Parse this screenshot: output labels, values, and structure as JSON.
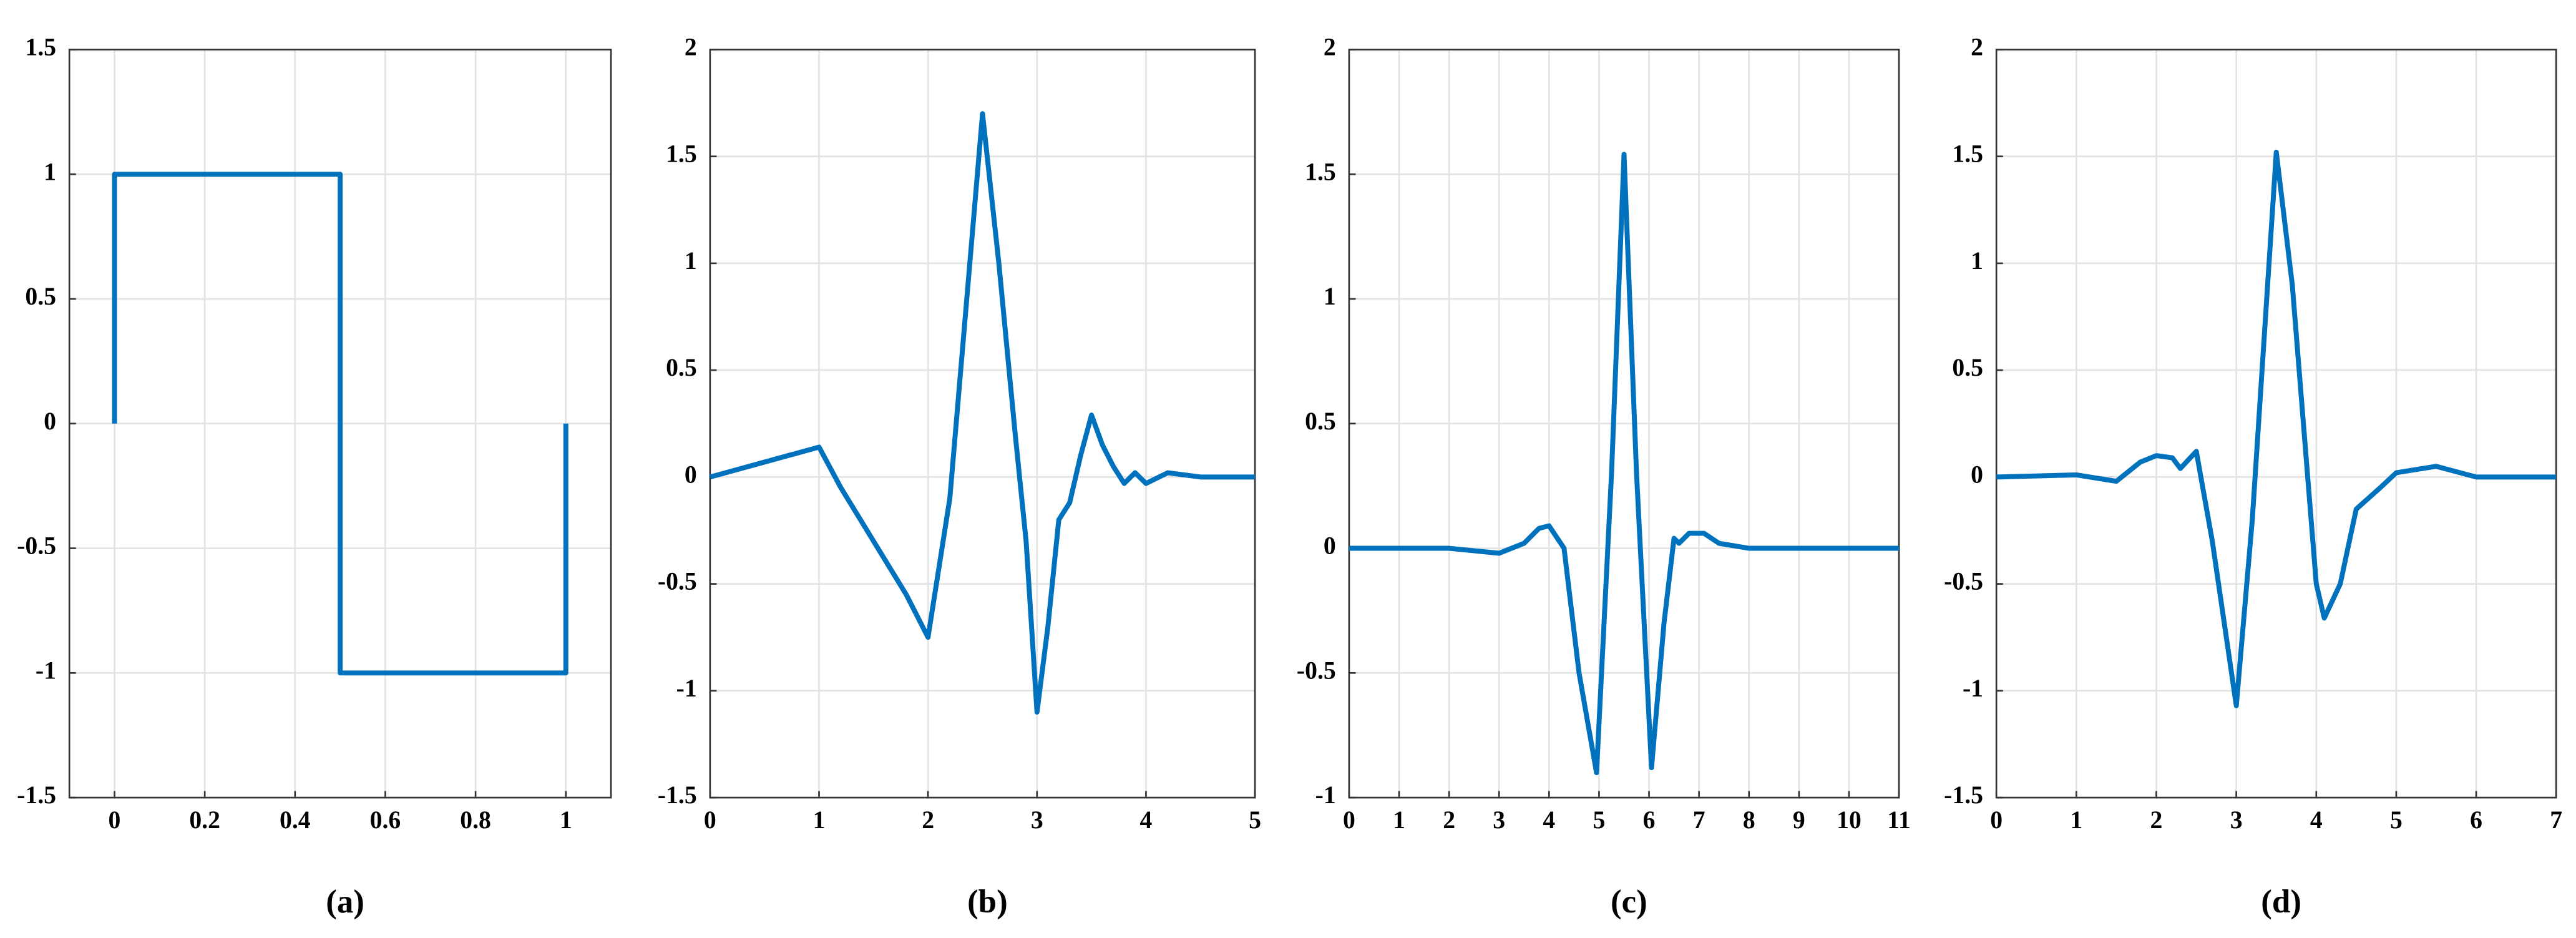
{
  "chart_data": [
    {
      "type": "line",
      "caption": "(a)",
      "color": "#0072bd",
      "grid": true,
      "x": [
        0,
        0,
        0.5,
        0.5,
        1,
        1
      ],
      "values": [
        0,
        1,
        1,
        -1,
        -1,
        0
      ],
      "xlim": [
        -0.1,
        1.1
      ],
      "ylim": [
        -1.5,
        1.5
      ],
      "xticks": [
        0,
        0.2,
        0.4,
        0.6,
        0.8,
        1
      ],
      "yticks": [
        -1.5,
        -1,
        -0.5,
        0,
        0.5,
        1,
        1.5
      ]
    },
    {
      "type": "line",
      "caption": "(b)",
      "color": "#0072bd",
      "grid": true,
      "x": [
        0,
        0.5,
        1,
        1.2,
        1.5,
        1.8,
        2,
        2.2,
        2.35,
        2.5,
        2.65,
        2.8,
        2.9,
        3,
        3.1,
        3.2,
        3.3,
        3.4,
        3.5,
        3.6,
        3.7,
        3.8,
        3.9,
        4,
        4.2,
        4.5,
        5
      ],
      "values": [
        0,
        0.07,
        0.14,
        -0.05,
        -0.3,
        -0.55,
        -0.75,
        -0.1,
        0.8,
        1.7,
        1.0,
        0.2,
        -0.3,
        -1.1,
        -0.7,
        -0.2,
        -0.12,
        0.1,
        0.29,
        0.15,
        0.05,
        -0.03,
        0.02,
        -0.03,
        0.02,
        0,
        0
      ],
      "xlim": [
        0,
        5
      ],
      "ylim": [
        -1.5,
        2
      ],
      "xticks": [
        0,
        1,
        2,
        3,
        4,
        5
      ],
      "yticks": [
        -1.5,
        -1,
        -0.5,
        0,
        0.5,
        1,
        1.5,
        2
      ]
    },
    {
      "type": "line",
      "caption": "(c)",
      "color": "#0072bd",
      "grid": true,
      "x": [
        0,
        2,
        3,
        3.5,
        3.8,
        4,
        4.3,
        4.6,
        4.95,
        5.25,
        5.5,
        5.75,
        6.05,
        6.3,
        6.5,
        6.6,
        6.8,
        7.1,
        7.4,
        8,
        11
      ],
      "values": [
        0,
        0,
        -0.02,
        0.02,
        0.08,
        0.09,
        0,
        -0.5,
        -0.9,
        0.3,
        1.58,
        0.3,
        -0.88,
        -0.3,
        0.04,
        0.02,
        0.06,
        0.06,
        0.02,
        0,
        0
      ],
      "xlim": [
        0,
        11
      ],
      "ylim": [
        -1,
        2
      ],
      "xticks": [
        0,
        1,
        2,
        3,
        4,
        5,
        6,
        7,
        8,
        9,
        10,
        11
      ],
      "yticks": [
        -1,
        -0.5,
        0,
        0.5,
        1,
        1.5,
        2
      ]
    },
    {
      "type": "line",
      "caption": "(d)",
      "color": "#0072bd",
      "grid": true,
      "x": [
        0,
        1,
        1.5,
        1.8,
        2,
        2.2,
        2.3,
        2.5,
        2.7,
        3,
        3.2,
        3.5,
        3.7,
        4,
        4.1,
        4.3,
        4.5,
        4.8,
        5,
        5.5,
        6,
        7
      ],
      "values": [
        0,
        0.01,
        -0.02,
        0.07,
        0.1,
        0.09,
        0.04,
        0.12,
        -0.3,
        -1.07,
        -0.2,
        1.52,
        0.9,
        -0.5,
        -0.66,
        -0.5,
        -0.15,
        -0.05,
        0.02,
        0.05,
        0,
        0
      ],
      "xlim": [
        0,
        7
      ],
      "ylim": [
        -1.5,
        2
      ],
      "xticks": [
        0,
        1,
        2,
        3,
        4,
        5,
        6,
        7
      ],
      "yticks": [
        -1.5,
        -1,
        -0.5,
        0,
        0.5,
        1,
        1.5,
        2
      ]
    }
  ]
}
